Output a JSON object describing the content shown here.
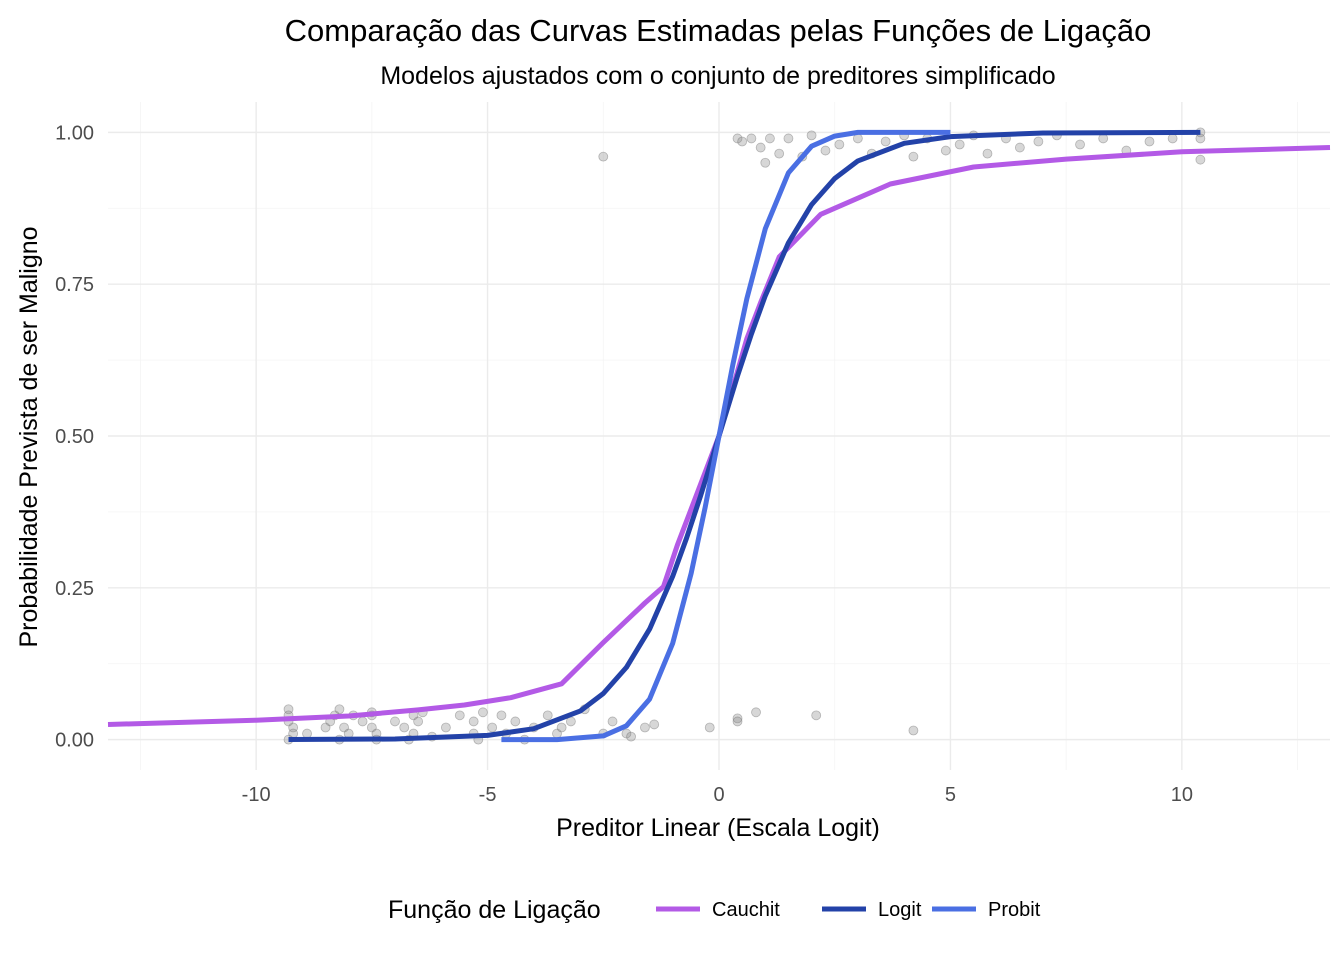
{
  "chart_data": {
    "type": "line",
    "title": "Comparação das Curvas Estimadas pelas Funções de Ligação",
    "subtitle": "Modelos ajustados com o conjunto de preditores simplificado",
    "xlabel": "Preditor Linear (Escala Logit)",
    "ylabel": "Probabilidade Prevista de ser Maligno",
    "xlim": [
      -13.2,
      13.2
    ],
    "ylim": [
      -0.05,
      1.05
    ],
    "x_ticks": [
      -10,
      -5,
      0,
      5,
      10
    ],
    "x_tick_labels": [
      "-10",
      "-5",
      "0",
      "5",
      "10"
    ],
    "y_ticks": [
      0,
      0.25,
      0.5,
      0.75,
      1
    ],
    "y_tick_labels": [
      "0.00",
      "0.25",
      "0.50",
      "0.75",
      "1.00"
    ],
    "grid": true,
    "legend": {
      "title": "Função de Ligação",
      "position": "bottom"
    },
    "series": [
      {
        "name": "Cauchit",
        "color": "#b35ae6",
        "x": [
          -13.2,
          -10,
          -8,
          -6.5,
          -5.5,
          -4.5,
          -3.4,
          -2.5,
          -1.6,
          -1.2,
          -0.9,
          -0.6,
          -0.3,
          0,
          0.3,
          0.6,
          0.9,
          1.3,
          2.2,
          3.7,
          5.5,
          7.5,
          10,
          13.2
        ],
        "y": [
          0.025,
          0.032,
          0.039,
          0.049,
          0.057,
          0.069,
          0.092,
          0.16,
          0.225,
          0.252,
          0.32,
          0.38,
          0.44,
          0.5,
          0.58,
          0.66,
          0.72,
          0.795,
          0.865,
          0.915,
          0.943,
          0.956,
          0.968,
          0.975
        ]
      },
      {
        "name": "Logit",
        "color": "#2342a8",
        "x": [
          -9.3,
          -7,
          -5,
          -4,
          -3,
          -2.5,
          -2,
          -1.5,
          -1,
          -0.7,
          -0.4,
          0,
          0.4,
          0.7,
          1,
          1.5,
          2,
          2.5,
          3,
          4,
          5,
          7,
          10.4
        ],
        "y": [
          0.0002,
          0.001,
          0.007,
          0.018,
          0.047,
          0.076,
          0.119,
          0.182,
          0.269,
          0.332,
          0.401,
          0.5,
          0.599,
          0.668,
          0.731,
          0.818,
          0.881,
          0.924,
          0.953,
          0.982,
          0.993,
          0.999,
          1.0
        ]
      },
      {
        "name": "Probit",
        "color": "#4a6fe3",
        "x": [
          -4.7,
          -3.5,
          -2.5,
          -2,
          -1.5,
          -1,
          -0.6,
          -0.3,
          0,
          0.3,
          0.6,
          1,
          1.5,
          2,
          2.5,
          3,
          5
        ],
        "y": [
          0.0,
          0.0001,
          0.0062,
          0.0228,
          0.0668,
          0.1587,
          0.2743,
          0.3821,
          0.5,
          0.6179,
          0.7257,
          0.8413,
          0.9332,
          0.9772,
          0.9938,
          0.9999,
          1.0
        ]
      }
    ],
    "observed_points": {
      "x": [
        -9.3,
        -9.3,
        -9.3,
        -9.2,
        -9.2,
        -9.3,
        -8.9,
        -8.5,
        -8.3,
        -8.2,
        -8.4,
        -8.1,
        -8.0,
        -8.2,
        -7.9,
        -7.7,
        -7.5,
        -7.5,
        -7.4,
        -7.4,
        -7.5,
        -7.0,
        -6.8,
        -6.6,
        -6.6,
        -6.7,
        -6.5,
        -6.4,
        -6.2,
        -5.9,
        -5.6,
        -5.3,
        -5.3,
        -5.1,
        -5.2,
        -4.9,
        -4.7,
        -4.6,
        -4.4,
        -4.2,
        -4.0,
        -3.7,
        -3.5,
        -3.4,
        -3.2,
        -2.9,
        -2.5,
        -2.3,
        -2.0,
        -1.9,
        -1.6,
        -1.4,
        -0.2,
        0.4,
        0.4,
        0.8,
        2.1,
        4.2,
        -2.5,
        0.4,
        0.5,
        0.7,
        0.9,
        1.0,
        1.1,
        1.3,
        1.5,
        1.8,
        2.0,
        2.3,
        2.6,
        3.0,
        3.3,
        3.6,
        4.0,
        4.2,
        4.5,
        4.9,
        5.2,
        5.5,
        5.8,
        6.2,
        6.5,
        6.9,
        7.3,
        7.8,
        8.3,
        8.8,
        9.3,
        9.8,
        10.4,
        10.4,
        10.4
      ],
      "y": [
        0.05,
        0.04,
        0.03,
        0.02,
        0.01,
        0.0,
        0.01,
        0.02,
        0.04,
        0.05,
        0.03,
        0.02,
        0.01,
        0.0,
        0.04,
        0.03,
        0.04,
        0.02,
        0.01,
        0.0,
        0.045,
        0.03,
        0.02,
        0.04,
        0.01,
        0.0,
        0.03,
        0.045,
        0.005,
        0.02,
        0.04,
        0.01,
        0.03,
        0.045,
        0.0,
        0.02,
        0.04,
        0.01,
        0.03,
        0.0,
        0.02,
        0.04,
        0.01,
        0.02,
        0.03,
        0.05,
        0.01,
        0.03,
        0.01,
        0.005,
        0.02,
        0.025,
        0.02,
        0.035,
        0.03,
        0.045,
        0.04,
        0.015,
        0.96,
        0.99,
        0.985,
        0.99,
        0.975,
        0.95,
        0.99,
        0.965,
        0.99,
        0.96,
        0.995,
        0.97,
        0.98,
        0.99,
        0.965,
        0.985,
        0.995,
        0.96,
        0.99,
        0.97,
        0.98,
        0.995,
        0.965,
        0.99,
        0.975,
        0.985,
        0.995,
        0.98,
        0.99,
        0.97,
        0.985,
        0.99,
        1.0,
        0.99,
        0.955
      ]
    }
  }
}
